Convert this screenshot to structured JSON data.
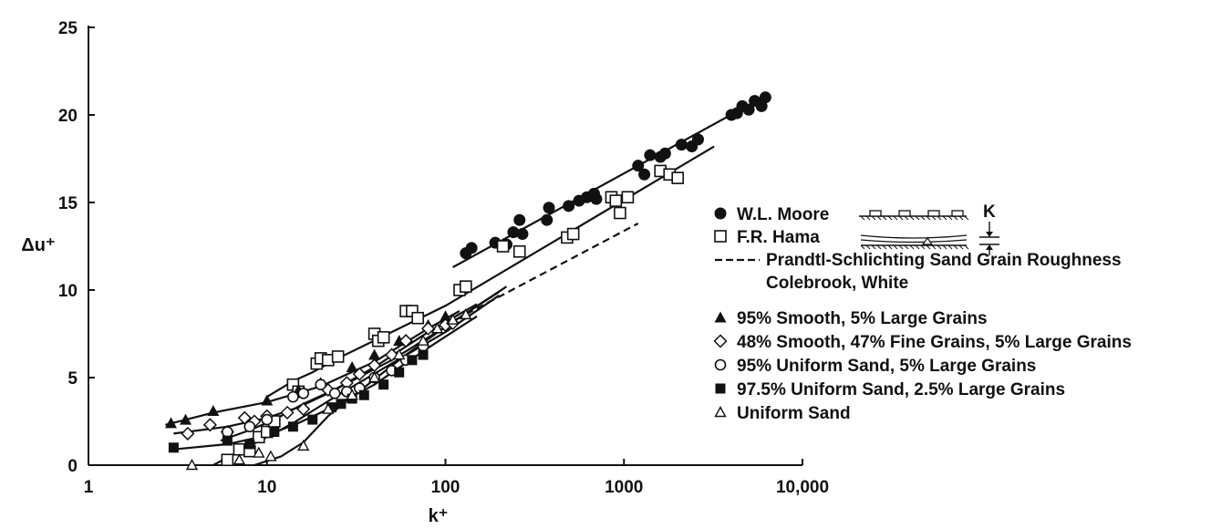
{
  "chart_data": {
    "type": "scatter",
    "xscale": "log",
    "xlim": [
      1,
      10000
    ],
    "ylim": [
      0,
      25
    ],
    "xlabel": "k⁺",
    "ylabel": "Δu⁺",
    "xticks": [
      {
        "value": 1,
        "label": "1"
      },
      {
        "value": 10,
        "label": "10"
      },
      {
        "value": 100,
        "label": "100"
      },
      {
        "value": 1000,
        "label": "1000"
      },
      {
        "value": 10000,
        "label": "10,000"
      }
    ],
    "yticks": [
      {
        "value": 0,
        "label": "0"
      },
      {
        "value": 5,
        "label": "5"
      },
      {
        "value": 10,
        "label": "10"
      },
      {
        "value": 15,
        "label": "15"
      },
      {
        "value": 20,
        "label": "20"
      },
      {
        "value": 25,
        "label": "25"
      }
    ],
    "grid": false,
    "legend_position": "right",
    "series": [
      {
        "name": "W.L. Moore",
        "marker": "filled-circle",
        "points": [
          [
            130,
            12.1
          ],
          [
            140,
            12.4
          ],
          [
            190,
            12.7
          ],
          [
            220,
            12.6
          ],
          [
            240,
            13.3
          ],
          [
            260,
            14.0
          ],
          [
            270,
            13.2
          ],
          [
            370,
            14.0
          ],
          [
            380,
            14.7
          ],
          [
            490,
            14.8
          ],
          [
            560,
            15.1
          ],
          [
            620,
            15.3
          ],
          [
            680,
            15.5
          ],
          [
            700,
            15.2
          ],
          [
            1200,
            17.1
          ],
          [
            1300,
            16.6
          ],
          [
            1400,
            17.7
          ],
          [
            1600,
            17.6
          ],
          [
            1700,
            17.8
          ],
          [
            2100,
            18.3
          ],
          [
            2400,
            18.2
          ],
          [
            2600,
            18.6
          ],
          [
            4000,
            20.0
          ],
          [
            4300,
            20.1
          ],
          [
            4600,
            20.5
          ],
          [
            5000,
            20.3
          ],
          [
            5400,
            20.8
          ],
          [
            5900,
            20.5
          ],
          [
            6200,
            21.0
          ]
        ]
      },
      {
        "name": "F.R. Hama",
        "marker": "open-square",
        "points": [
          [
            6,
            0.3
          ],
          [
            7,
            0.9
          ],
          [
            8,
            0.8
          ],
          [
            9,
            1.6
          ],
          [
            10,
            1.9
          ],
          [
            11,
            2.5
          ],
          [
            14,
            4.6
          ],
          [
            15,
            4.2
          ],
          [
            19,
            5.8
          ],
          [
            20,
            6.1
          ],
          [
            22,
            6.0
          ],
          [
            25,
            6.2
          ],
          [
            40,
            7.5
          ],
          [
            42,
            7.1
          ],
          [
            45,
            7.3
          ],
          [
            60,
            8.8
          ],
          [
            65,
            8.8
          ],
          [
            70,
            8.4
          ],
          [
            120,
            10.0
          ],
          [
            130,
            10.2
          ],
          [
            210,
            12.5
          ],
          [
            260,
            12.2
          ],
          [
            480,
            13.0
          ],
          [
            520,
            13.2
          ],
          [
            850,
            15.3
          ],
          [
            900,
            15.1
          ],
          [
            950,
            14.4
          ],
          [
            1050,
            15.3
          ],
          [
            1600,
            16.8
          ],
          [
            1800,
            16.6
          ],
          [
            2000,
            16.4
          ]
        ]
      },
      {
        "name": "95% Smooth, 5% Large Grains",
        "marker": "filled-triangle",
        "points": [
          [
            2.9,
            2.4
          ],
          [
            3.5,
            2.6
          ],
          [
            5,
            3.1
          ],
          [
            10,
            3.7
          ],
          [
            15,
            4.3
          ],
          [
            20,
            4.7
          ],
          [
            30,
            5.6
          ],
          [
            40,
            6.3
          ],
          [
            55,
            7.1
          ],
          [
            80,
            8.0
          ],
          [
            100,
            8.5
          ]
        ]
      },
      {
        "name": "48% Smooth, 47% Fine Grains, 5% Large Grains",
        "marker": "open-diamond",
        "points": [
          [
            3.6,
            1.8
          ],
          [
            4.8,
            2.3
          ],
          [
            6,
            1.9
          ],
          [
            7.5,
            2.7
          ],
          [
            8.5,
            2.5
          ],
          [
            10,
            2.8
          ],
          [
            13,
            3.0
          ],
          [
            16,
            3.2
          ],
          [
            22,
            4.3
          ],
          [
            28,
            4.7
          ],
          [
            33,
            5.2
          ],
          [
            40,
            5.7
          ],
          [
            50,
            6.3
          ],
          [
            60,
            7.1
          ],
          [
            80,
            7.8
          ],
          [
            100,
            8.0
          ],
          [
            110,
            8.1
          ]
        ]
      },
      {
        "name": "95% Uniform Sand, 5% Large Grains",
        "marker": "open-circle",
        "points": [
          [
            6,
            1.9
          ],
          [
            8,
            2.2
          ],
          [
            10,
            2.6
          ],
          [
            14,
            3.9
          ],
          [
            16,
            4.1
          ],
          [
            20,
            4.6
          ],
          [
            24,
            4.1
          ],
          [
            28,
            4.2
          ],
          [
            33,
            4.4
          ],
          [
            40,
            5.0
          ],
          [
            50,
            5.4
          ],
          [
            60,
            6.0
          ],
          [
            75,
            6.8
          ]
        ]
      },
      {
        "name": "97.5% Uniform Sand, 2.5% Large Grains",
        "marker": "filled-square",
        "points": [
          [
            3,
            1.0
          ],
          [
            6,
            1.4
          ],
          [
            8,
            1.2
          ],
          [
            11,
            1.9
          ],
          [
            14,
            2.2
          ],
          [
            18,
            2.6
          ],
          [
            23,
            3.3
          ],
          [
            26,
            3.5
          ],
          [
            30,
            3.8
          ],
          [
            35,
            4.0
          ],
          [
            45,
            4.6
          ],
          [
            55,
            5.3
          ],
          [
            65,
            6.0
          ],
          [
            75,
            6.3
          ]
        ]
      },
      {
        "name": "Uniform Sand",
        "marker": "open-triangle",
        "points": [
          [
            3.8,
            0.0
          ],
          [
            7,
            0.3
          ],
          [
            9,
            0.7
          ],
          [
            10.5,
            0.5
          ],
          [
            16,
            1.1
          ],
          [
            22,
            3.2
          ],
          [
            30,
            4.0
          ],
          [
            40,
            5.0
          ],
          [
            55,
            6.3
          ],
          [
            75,
            7.1
          ],
          [
            90,
            7.8
          ],
          [
            110,
            8.3
          ],
          [
            130,
            8.6
          ]
        ]
      }
    ],
    "lines": [
      {
        "name": "W.L. Moore fit",
        "style": "solid",
        "points": [
          [
            110,
            11.3
          ],
          [
            6500,
            21.2
          ]
        ]
      },
      {
        "name": "F.R. Hama fit",
        "style": "solid",
        "points": [
          [
            10,
            3.9
          ],
          [
            14,
            4.8
          ],
          [
            18,
            5.3
          ],
          [
            25,
            6.1
          ],
          [
            100,
            9.1
          ],
          [
            3200,
            18.2
          ]
        ]
      },
      {
        "name": "Prandtl-Schlichting Sand Grain Roughness",
        "style": "dashed",
        "points": [
          [
            100,
            8.0
          ],
          [
            1200,
            13.8
          ]
        ]
      },
      {
        "name": "Colebrook, White",
        "style": "solid",
        "points": [
          [
            5,
            0.0
          ],
          [
            7,
            0.8
          ],
          [
            10,
            1.6
          ],
          [
            14,
            2.4
          ],
          [
            18,
            3.1
          ],
          [
            25,
            4.0
          ],
          [
            50,
            5.8
          ],
          [
            100,
            7.6
          ],
          [
            200,
            9.7
          ]
        ]
      },
      {
        "name": "95% Smooth curve",
        "style": "solid",
        "points": [
          [
            2.7,
            2.3
          ],
          [
            5,
            3.0
          ],
          [
            10,
            3.6
          ],
          [
            20,
            4.5
          ],
          [
            40,
            5.9
          ],
          [
            80,
            7.8
          ],
          [
            120,
            8.8
          ]
        ]
      },
      {
        "name": "48% Smooth curve",
        "style": "solid",
        "points": [
          [
            3,
            1.8
          ],
          [
            6,
            2.2
          ],
          [
            10,
            2.7
          ],
          [
            15,
            3.3
          ],
          [
            22,
            4.1
          ],
          [
            40,
            5.6
          ],
          [
            80,
            7.6
          ],
          [
            150,
            9.2
          ]
        ]
      },
      {
        "name": "95% Uniform Sand curve",
        "style": "solid",
        "points": [
          [
            5.5,
            1.4
          ],
          [
            8,
            2.0
          ],
          [
            11,
            2.6
          ],
          [
            16,
            3.5
          ],
          [
            25,
            4.4
          ],
          [
            50,
            6.0
          ],
          [
            100,
            7.9
          ],
          [
            200,
            9.9
          ]
        ]
      },
      {
        "name": "97.5% Uniform Sand curve",
        "style": "solid",
        "points": [
          [
            3,
            0.9
          ],
          [
            6,
            1.2
          ],
          [
            10,
            1.7
          ],
          [
            15,
            2.4
          ],
          [
            22,
            3.2
          ],
          [
            40,
            4.6
          ],
          [
            80,
            6.7
          ],
          [
            150,
            8.5
          ]
        ]
      },
      {
        "name": "Uniform Sand curve",
        "style": "solid",
        "points": [
          [
            8.5,
            0.0
          ],
          [
            12,
            0.5
          ],
          [
            16,
            1.3
          ],
          [
            22,
            2.8
          ],
          [
            30,
            3.9
          ],
          [
            60,
            6.3
          ],
          [
            100,
            7.9
          ],
          [
            220,
            10.2
          ]
        ]
      }
    ],
    "legend": [
      {
        "label": "W.L. Moore",
        "marker": "filled-circle"
      },
      {
        "label": "F.R. Hama",
        "marker": "open-square"
      },
      {
        "label": "Prandtl-Schlichting Sand Grain Roughness",
        "marker": "dashed-line"
      },
      {
        "label": "Colebrook, White",
        "marker": "none"
      },
      {
        "label": "95% Smooth, 5% Large Grains",
        "marker": "filled-triangle"
      },
      {
        "label": "48% Smooth, 47% Fine Grains, 5% Large Grains",
        "marker": "open-diamond"
      },
      {
        "label": "95% Uniform Sand, 5% Large Grains",
        "marker": "open-circle"
      },
      {
        "label": "97.5% Uniform Sand, 2.5% Large Grains",
        "marker": "filled-square"
      },
      {
        "label": "Uniform Sand",
        "marker": "open-triangle"
      }
    ],
    "annotation_k": "K"
  }
}
